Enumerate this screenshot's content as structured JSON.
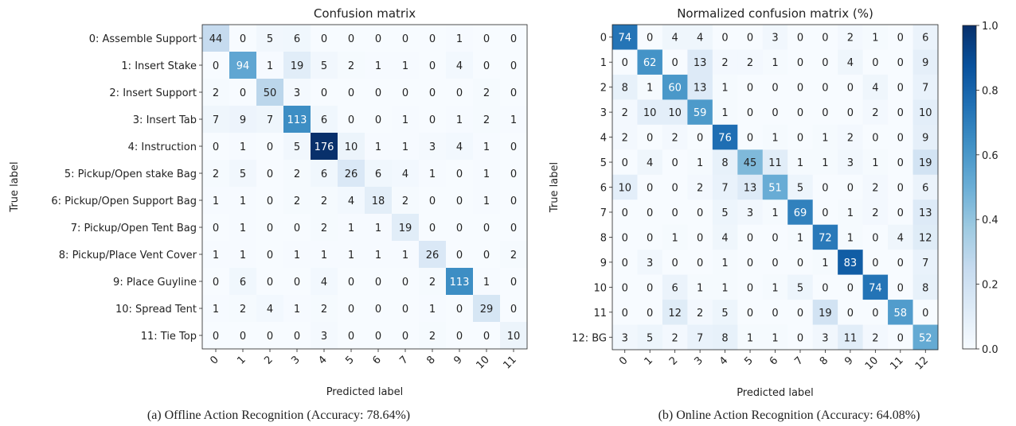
{
  "chart_data": [
    {
      "type": "heatmap",
      "title": "Confusion matrix",
      "xlabel": "Predicted label",
      "ylabel": "True label",
      "caption": "(a)  Offline Action Recognition (Accuracy: 78.64%)",
      "x_tick_labels": [
        "0",
        "1",
        "2",
        "3",
        "4",
        "5",
        "6",
        "7",
        "8",
        "9",
        "10",
        "11"
      ],
      "y_tick_labels": [
        "0: Assemble Support",
        "1: Insert Stake",
        "2: Insert Support",
        "3: Insert Tab",
        "4: Instruction",
        "5: Pickup/Open stake Bag",
        "6: Pickup/Open Support Bag",
        "7: Pickup/Open Tent Bag",
        "8: Pickup/Place Vent Cover",
        "9: Place Guyline",
        "10: Spread Tent",
        "11: Tie Top"
      ],
      "values": [
        [
          44,
          0,
          5,
          6,
          0,
          0,
          0,
          0,
          0,
          1,
          0,
          0
        ],
        [
          0,
          94,
          1,
          19,
          5,
          2,
          1,
          1,
          0,
          4,
          0,
          0
        ],
        [
          2,
          0,
          50,
          3,
          0,
          0,
          0,
          0,
          0,
          0,
          2,
          0
        ],
        [
          7,
          9,
          7,
          113,
          6,
          0,
          0,
          1,
          0,
          1,
          2,
          1
        ],
        [
          0,
          1,
          0,
          5,
          176,
          10,
          1,
          1,
          3,
          4,
          1,
          0
        ],
        [
          2,
          5,
          0,
          2,
          6,
          26,
          6,
          4,
          1,
          0,
          1,
          0
        ],
        [
          1,
          1,
          0,
          2,
          2,
          4,
          18,
          2,
          0,
          0,
          1,
          0
        ],
        [
          0,
          1,
          0,
          0,
          2,
          1,
          1,
          19,
          0,
          0,
          0,
          0
        ],
        [
          1,
          1,
          0,
          1,
          1,
          1,
          1,
          1,
          26,
          0,
          0,
          2
        ],
        [
          0,
          6,
          0,
          0,
          4,
          0,
          0,
          0,
          2,
          113,
          1,
          0
        ],
        [
          1,
          2,
          4,
          1,
          2,
          0,
          0,
          0,
          1,
          0,
          29,
          0
        ],
        [
          0,
          0,
          0,
          0,
          3,
          0,
          0,
          0,
          2,
          0,
          0,
          10
        ]
      ],
      "colormap": "Blues"
    },
    {
      "type": "heatmap",
      "title": "Normalized confusion matrix (%)",
      "xlabel": "Predicted label",
      "ylabel": "True label",
      "caption": "(b)  Online Action Recognition (Accuracy: 64.08%)",
      "x_tick_labels": [
        "0",
        "1",
        "2",
        "3",
        "4",
        "5",
        "6",
        "7",
        "8",
        "9",
        "10",
        "11",
        "12"
      ],
      "y_tick_labels": [
        "0",
        "1",
        "2",
        "3",
        "4",
        "5",
        "6",
        "7",
        "8",
        "9",
        "10",
        "11",
        "12: BG"
      ],
      "values": [
        [
          74,
          0,
          4,
          4,
          0,
          0,
          3,
          0,
          0,
          2,
          1,
          0,
          6
        ],
        [
          0,
          62,
          0,
          13,
          2,
          2,
          1,
          0,
          0,
          4,
          0,
          0,
          9
        ],
        [
          8,
          1,
          60,
          13,
          1,
          0,
          0,
          0,
          0,
          0,
          4,
          0,
          7
        ],
        [
          2,
          10,
          10,
          59,
          1,
          0,
          0,
          0,
          0,
          0,
          2,
          0,
          10
        ],
        [
          2,
          0,
          2,
          0,
          76,
          0,
          1,
          0,
          1,
          2,
          0,
          0,
          9
        ],
        [
          0,
          4,
          0,
          1,
          8,
          45,
          11,
          1,
          1,
          3,
          1,
          0,
          19
        ],
        [
          10,
          0,
          0,
          2,
          7,
          13,
          51,
          5,
          0,
          0,
          2,
          0,
          6
        ],
        [
          0,
          0,
          0,
          0,
          5,
          3,
          1,
          69,
          0,
          1,
          2,
          0,
          13
        ],
        [
          0,
          0,
          1,
          0,
          4,
          0,
          0,
          1,
          72,
          1,
          0,
          4,
          12
        ],
        [
          0,
          3,
          0,
          0,
          1,
          0,
          0,
          0,
          1,
          83,
          0,
          0,
          7
        ],
        [
          0,
          0,
          6,
          1,
          1,
          0,
          1,
          5,
          0,
          0,
          74,
          0,
          8
        ],
        [
          0,
          0,
          12,
          2,
          5,
          0,
          0,
          0,
          19,
          0,
          0,
          58,
          0
        ],
        [
          3,
          5,
          2,
          7,
          8,
          1,
          1,
          0,
          3,
          11,
          2,
          0,
          52
        ]
      ],
      "colormap": "Blues",
      "colorbar": {
        "range": [
          0.0,
          1.0
        ],
        "ticks": [
          "0.0",
          "0.2",
          "0.4",
          "0.6",
          "0.8",
          "1.0"
        ]
      }
    }
  ]
}
